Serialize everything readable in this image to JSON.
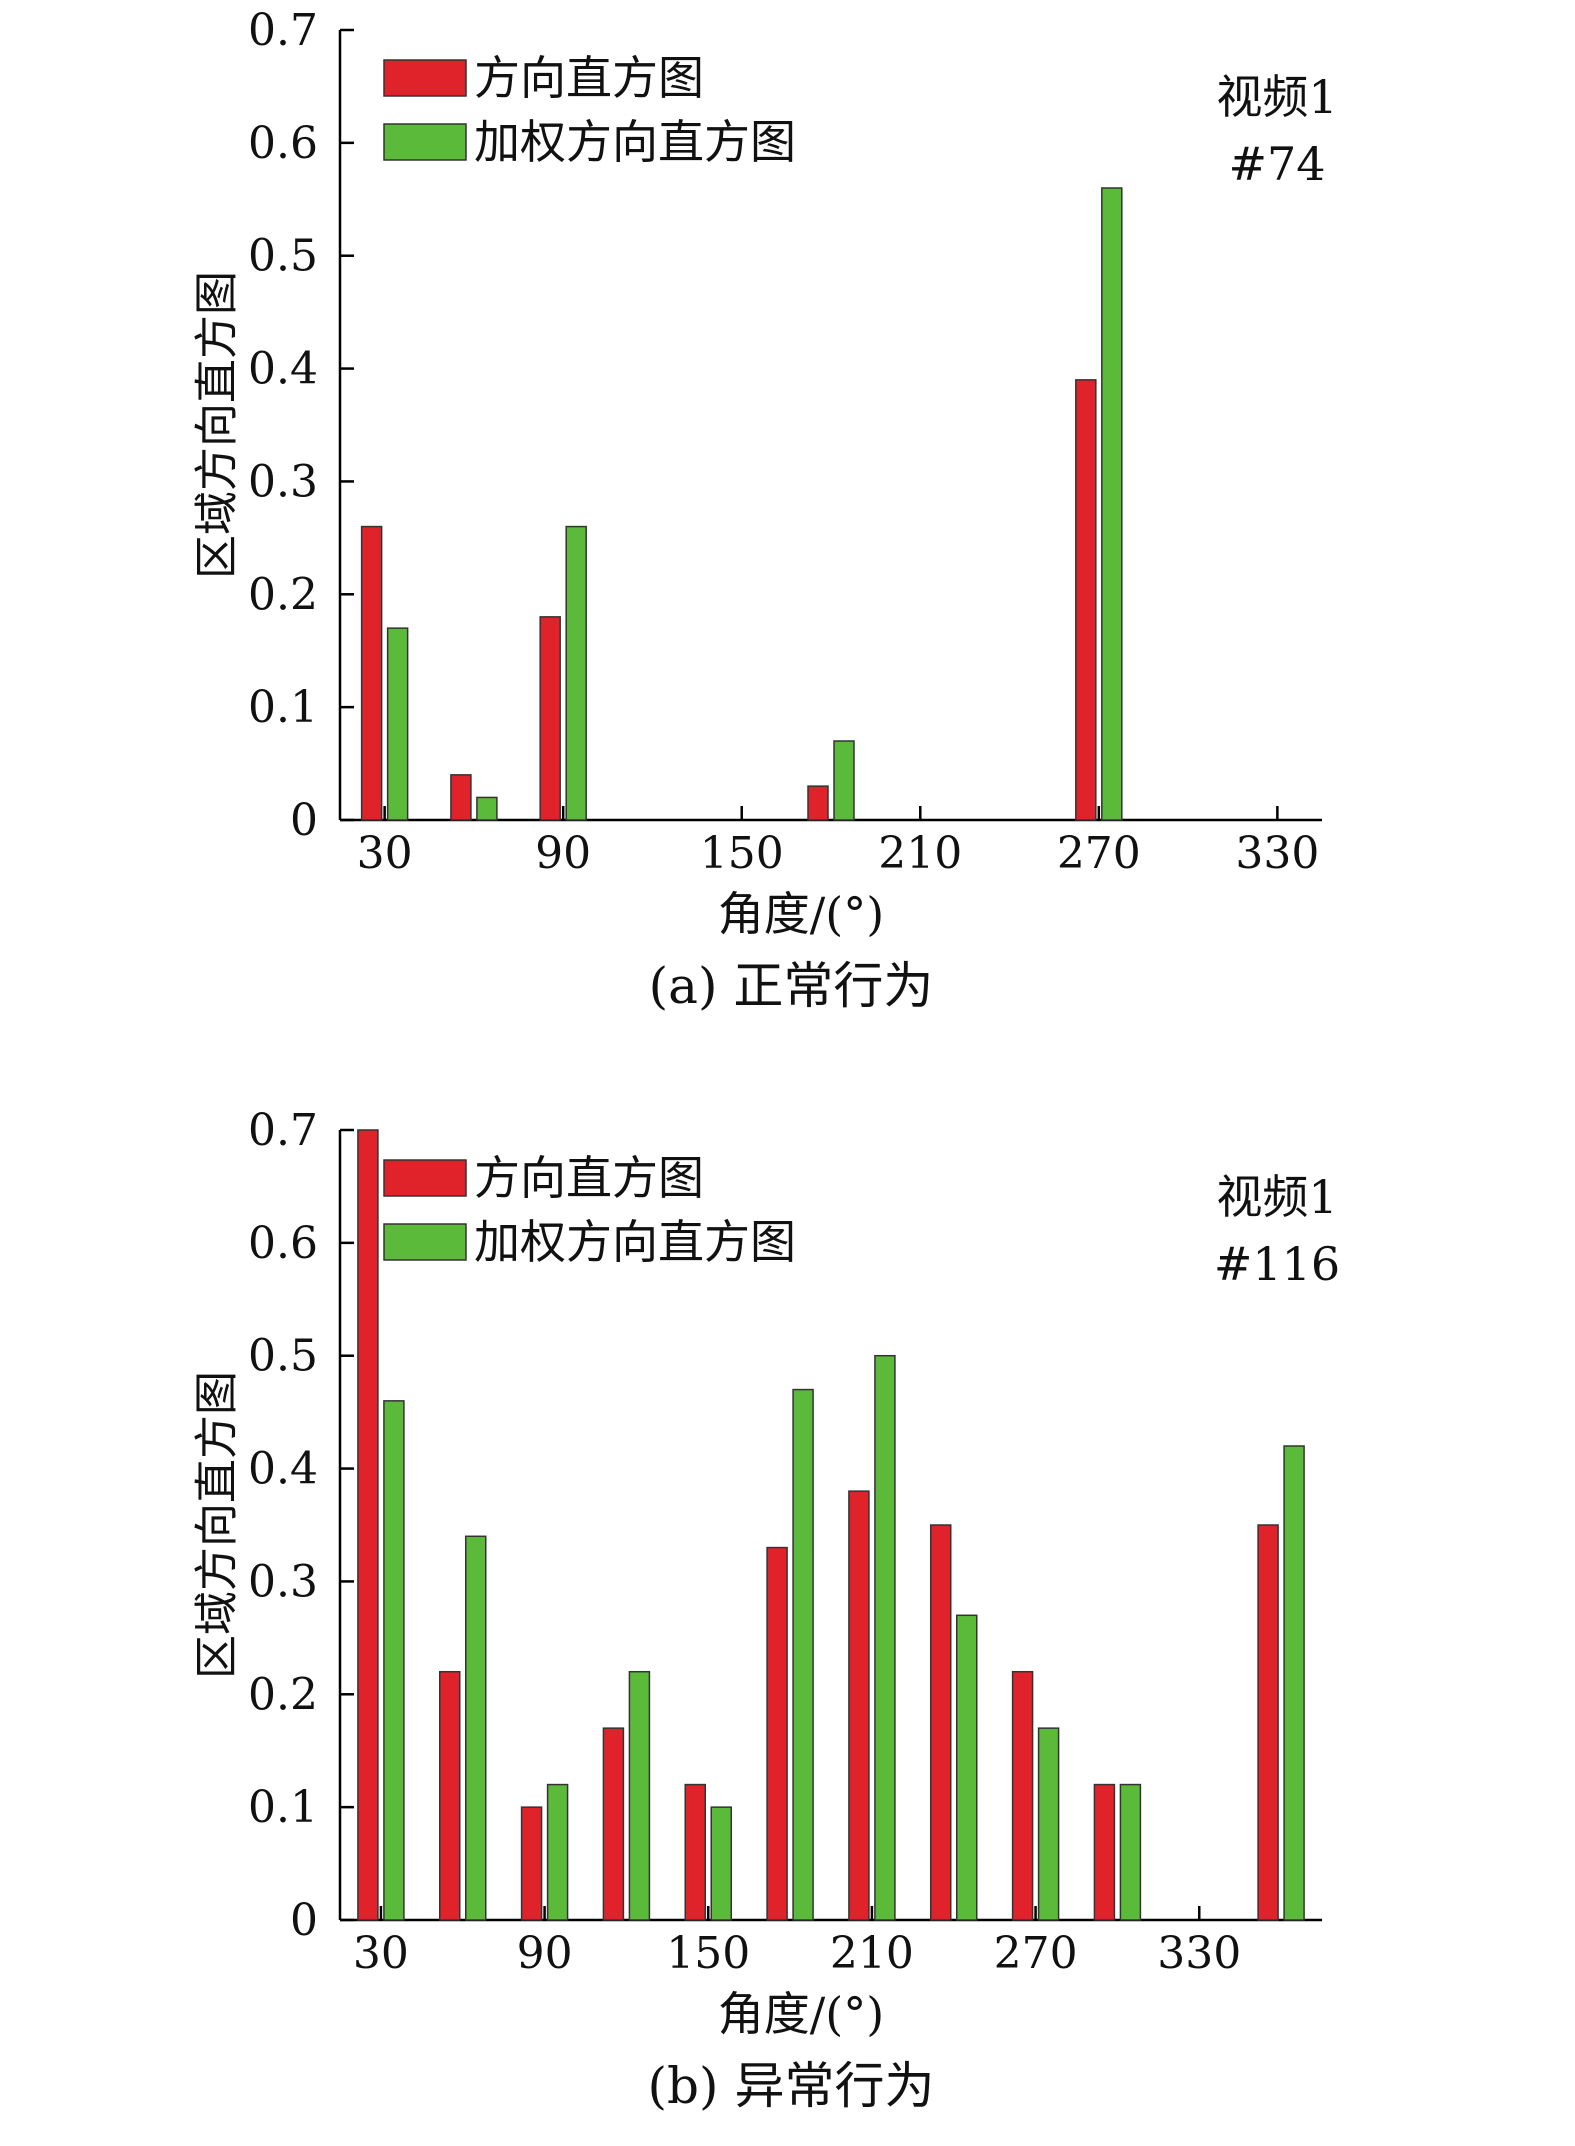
{
  "colors": {
    "series1": "#e0232b",
    "series2": "#5cba3a",
    "axis": "#000000",
    "bar_outline": "#333333"
  },
  "chart_data": [
    {
      "type": "bar",
      "caption": "(a) 正常行为",
      "xlabel": "角度/(°)",
      "ylabel": "区域方向直方图",
      "ylim": [
        0,
        0.7
      ],
      "yticks": [
        "0",
        "0.1",
        "0.2",
        "0.3",
        "0.4",
        "0.5",
        "0.6",
        "0.7"
      ],
      "xlim": [
        15,
        345
      ],
      "xticks": [
        30,
        90,
        150,
        210,
        270,
        330
      ],
      "xtick_labels": [
        "30",
        "90",
        "150",
        "210",
        "270",
        "330"
      ],
      "annotation": [
        "视频1",
        "#74"
      ],
      "legend_position": "top-left",
      "grid": false,
      "x": [
        30,
        60,
        90,
        180,
        270
      ],
      "series": [
        {
          "name": "方向直方图",
          "values": [
            0.26,
            0.04,
            0.18,
            0.03,
            0.39
          ]
        },
        {
          "name": "加权方向直方图",
          "values": [
            0.17,
            0.02,
            0.26,
            0.07,
            0.56
          ]
        }
      ]
    },
    {
      "type": "bar",
      "caption": "(b) 异常行为",
      "xlabel": "角度/(°)",
      "ylabel": "区域方向直方图",
      "ylim": [
        0,
        0.7
      ],
      "yticks": [
        "0",
        "0.1",
        "0.2",
        "0.3",
        "0.4",
        "0.5",
        "0.6",
        "0.7"
      ],
      "xlim": [
        15,
        375
      ],
      "xticks": [
        30,
        90,
        150,
        210,
        270,
        330
      ],
      "xtick_labels": [
        "30",
        "90",
        "150",
        "210",
        "270",
        "330"
      ],
      "annotation": [
        "视频1",
        "#116"
      ],
      "legend_position": "top-left",
      "grid": false,
      "x": [
        30,
        60,
        90,
        120,
        150,
        180,
        210,
        240,
        270,
        300,
        330,
        360
      ],
      "series": [
        {
          "name": "方向直方图",
          "values": [
            0.7,
            0.22,
            0.1,
            0.17,
            0.12,
            0.33,
            0.38,
            0.35,
            0.22,
            0.12,
            0,
            0.35
          ]
        },
        {
          "name": "加权方向直方图",
          "values": [
            0.46,
            0.34,
            0.12,
            0.22,
            0.1,
            0.47,
            0.5,
            0.27,
            0.17,
            0.12,
            0,
            0.42
          ]
        }
      ]
    }
  ]
}
